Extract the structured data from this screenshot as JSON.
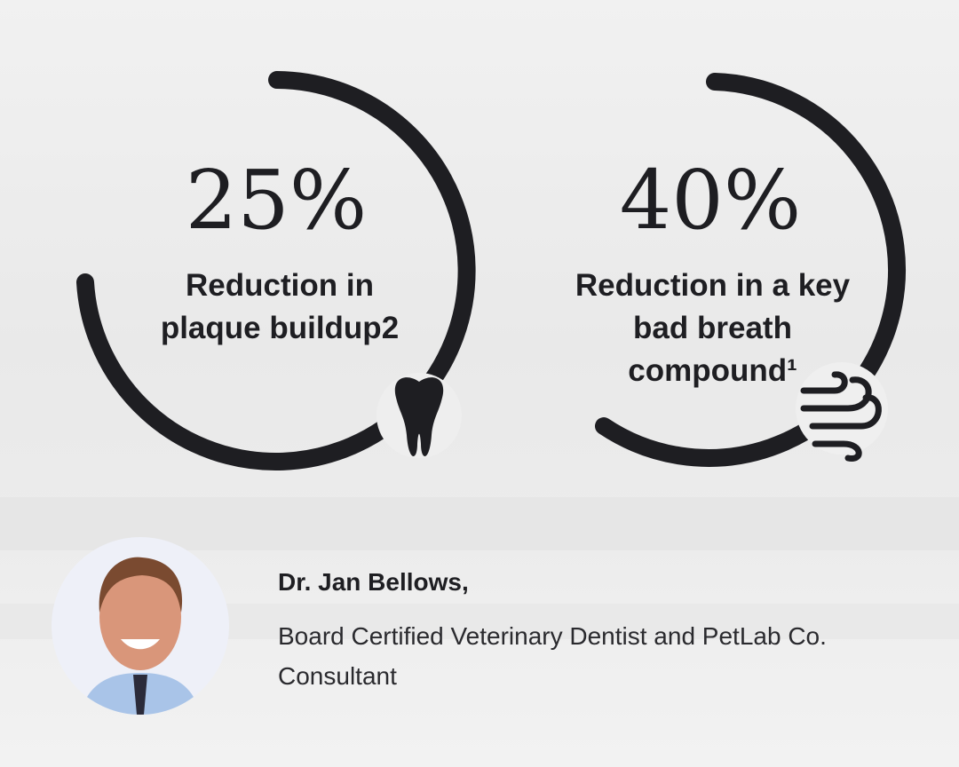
{
  "stats": [
    {
      "value": "25%",
      "label": "Reduction in plaque buildup2"
    },
    {
      "value": "40%",
      "label": "Reduction in a key bad breath compound¹"
    }
  ],
  "expert": {
    "name": "Dr. Jan Bellows,",
    "title": "Board Certified Veterinary Dentist and PetLab Co. Consultant"
  }
}
